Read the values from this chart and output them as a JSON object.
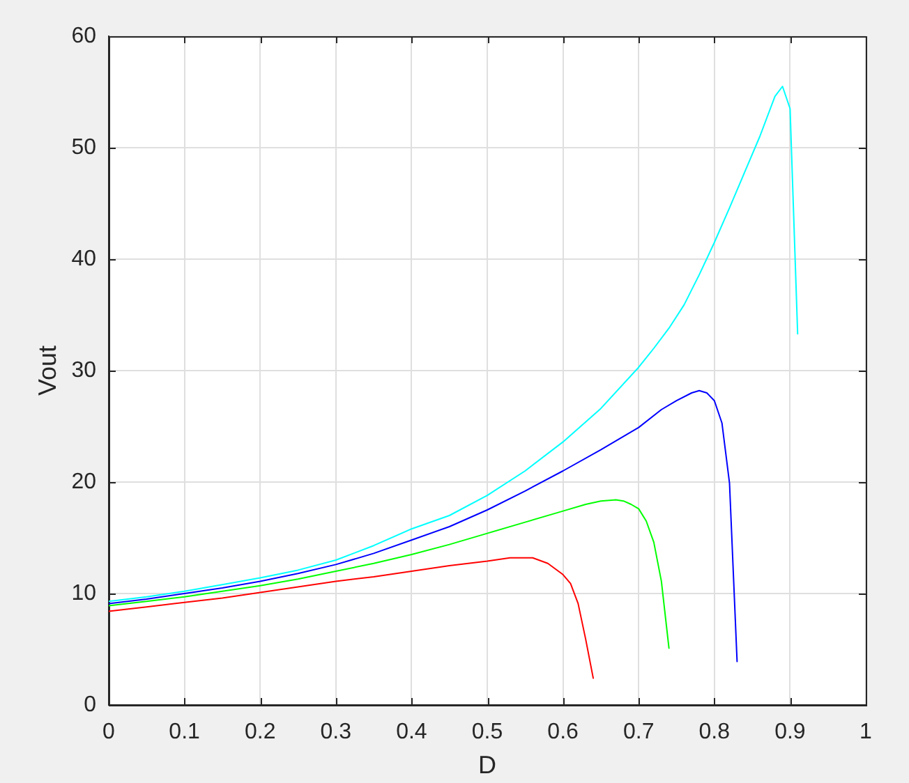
{
  "chart_data": {
    "type": "line",
    "xlabel": "D",
    "ylabel": "Vout",
    "xlim": [
      0,
      1
    ],
    "ylim": [
      0,
      60
    ],
    "xticks": [
      0,
      0.1,
      0.2,
      0.3,
      0.4,
      0.5,
      0.6,
      0.7,
      0.8,
      0.9,
      1
    ],
    "yticks": [
      0,
      10,
      20,
      30,
      40,
      50,
      60
    ],
    "grid": true,
    "series": [
      {
        "color": "#ff0000",
        "x": [
          0,
          0.05,
          0.1,
          0.15,
          0.2,
          0.25,
          0.3,
          0.35,
          0.4,
          0.45,
          0.5,
          0.53,
          0.56,
          0.58,
          0.59,
          0.6,
          0.61,
          0.62,
          0.63,
          0.64
        ],
        "values": [
          8.4,
          8.8,
          9.2,
          9.6,
          10.1,
          10.6,
          11.1,
          11.5,
          12.0,
          12.5,
          12.9,
          13.2,
          13.2,
          12.7,
          12.2,
          11.7,
          10.9,
          9.1,
          5.9,
          2.4
        ]
      },
      {
        "color": "#00ff00",
        "x": [
          0,
          0.05,
          0.1,
          0.15,
          0.2,
          0.25,
          0.3,
          0.35,
          0.4,
          0.45,
          0.5,
          0.55,
          0.6,
          0.63,
          0.65,
          0.67,
          0.68,
          0.69,
          0.7,
          0.71,
          0.72,
          0.73,
          0.74
        ],
        "values": [
          8.9,
          9.3,
          9.7,
          10.2,
          10.7,
          11.3,
          12.0,
          12.7,
          13.5,
          14.4,
          15.4,
          16.4,
          17.4,
          18.0,
          18.3,
          18.4,
          18.3,
          18.0,
          17.6,
          16.5,
          14.6,
          11.1,
          5.1
        ]
      },
      {
        "color": "#0000ff",
        "x": [
          0,
          0.05,
          0.1,
          0.15,
          0.2,
          0.25,
          0.3,
          0.35,
          0.4,
          0.45,
          0.5,
          0.55,
          0.6,
          0.65,
          0.7,
          0.73,
          0.75,
          0.77,
          0.78,
          0.79,
          0.8,
          0.81,
          0.82,
          0.83
        ],
        "values": [
          9.1,
          9.5,
          10.0,
          10.5,
          11.1,
          11.8,
          12.6,
          13.6,
          14.8,
          16.0,
          17.5,
          19.2,
          21.0,
          22.9,
          24.9,
          26.5,
          27.3,
          28.0,
          28.2,
          28.0,
          27.3,
          25.3,
          19.9,
          3.9
        ]
      },
      {
        "color": "#00ffff",
        "x": [
          0,
          0.05,
          0.1,
          0.15,
          0.2,
          0.25,
          0.3,
          0.35,
          0.4,
          0.45,
          0.5,
          0.55,
          0.6,
          0.65,
          0.7,
          0.72,
          0.74,
          0.76,
          0.78,
          0.8,
          0.82,
          0.84,
          0.86,
          0.88,
          0.89,
          0.9,
          0.91
        ],
        "values": [
          9.3,
          9.7,
          10.2,
          10.8,
          11.4,
          12.1,
          13.0,
          14.3,
          15.8,
          17.0,
          18.8,
          21.0,
          23.6,
          26.6,
          30.3,
          32.0,
          33.8,
          35.9,
          38.6,
          41.5,
          44.6,
          47.8,
          51.0,
          54.6,
          55.5,
          53.5,
          33.3
        ]
      }
    ]
  }
}
